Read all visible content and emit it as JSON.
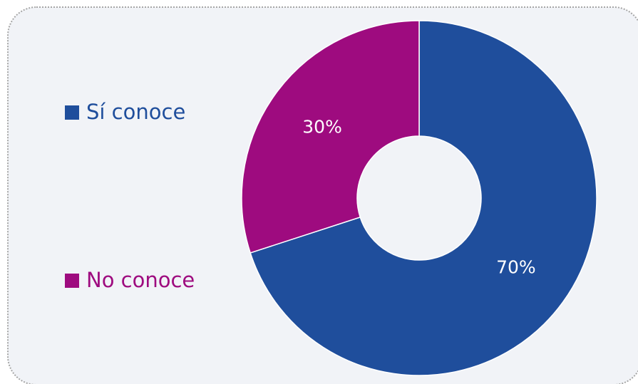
{
  "chart_data": {
    "type": "donut",
    "categories": [
      "Sí conoce",
      "No conoce"
    ],
    "values": [
      70,
      30
    ],
    "value_labels": [
      "70%",
      "30%"
    ],
    "colors": [
      "#1f4e9c",
      "#9e0b7f"
    ]
  }
}
